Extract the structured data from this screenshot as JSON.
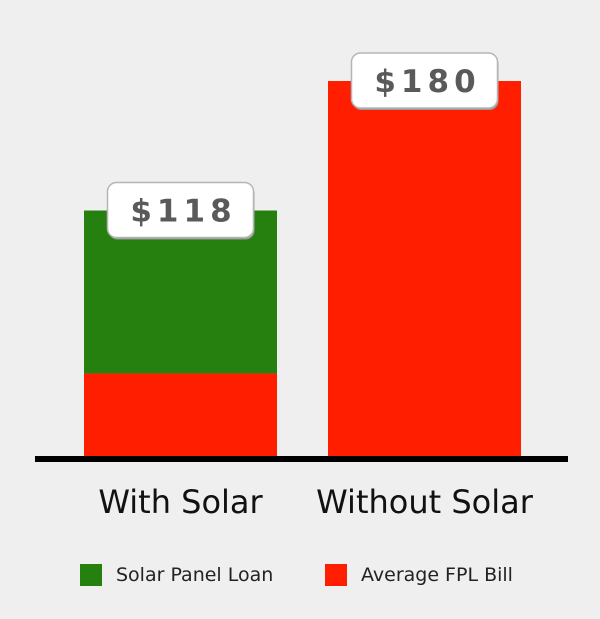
{
  "chart_data": {
    "type": "bar",
    "stacked": true,
    "categories": [
      "With Solar",
      "Without Solar"
    ],
    "series": [
      {
        "name": "Average FPL Bill",
        "color": "#ff1f00",
        "values": [
          40,
          180
        ]
      },
      {
        "name": "Solar Panel Loan",
        "color": "#268010",
        "values": [
          78,
          0
        ]
      }
    ],
    "totals": [
      118,
      180
    ],
    "data_labels": [
      "$118",
      "$180"
    ],
    "ylim": [
      0,
      200
    ],
    "grid": false,
    "legend": {
      "position": "bottom",
      "items": [
        {
          "label": "Solar Panel Loan",
          "color": "#268010"
        },
        {
          "label": "Average FPL Bill",
          "color": "#ff1f00"
        }
      ]
    },
    "colors": {
      "background": "#efefef",
      "axis": "#000000",
      "label_box": "#ffffff"
    }
  }
}
